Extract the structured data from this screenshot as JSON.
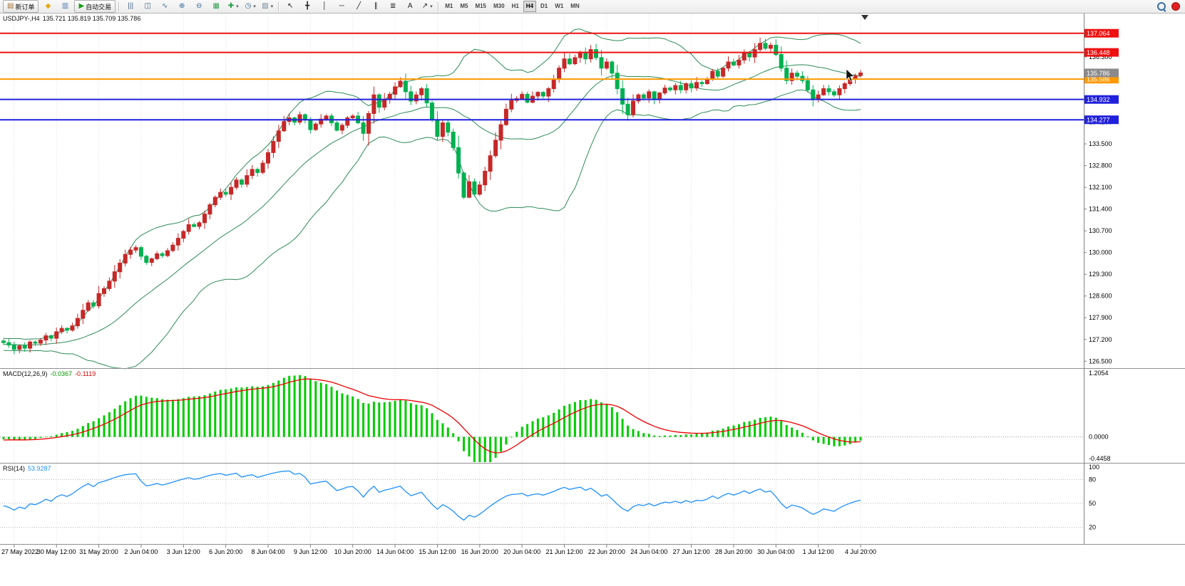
{
  "toolbar": {
    "groups": [
      {
        "items": [
          {
            "name": "new-order-button",
            "glyph": "▤",
            "color": "#a87030",
            "label": "新订单"
          },
          {
            "name": "metaeditor-button",
            "glyph": "◆",
            "color": "#e8a818"
          },
          {
            "name": "market-watch-button",
            "glyph": "▥",
            "color": "#5577aa"
          },
          {
            "name": "auto-trading-button",
            "glyph": "▶",
            "color": "#17a017",
            "label": "自动交易"
          }
        ]
      },
      {
        "items": [
          {
            "name": "bar-chart-button",
            "glyph": "|||",
            "color": "#446688"
          },
          {
            "name": "candlestick-chart-button",
            "glyph": "◫",
            "color": "#446688"
          },
          {
            "name": "line-chart-button",
            "glyph": "∿",
            "color": "#446688"
          },
          {
            "name": "zoom-in-button",
            "glyph": "⊕",
            "color": "#336699"
          },
          {
            "name": "zoom-out-button",
            "glyph": "⊖",
            "color": "#336699"
          },
          {
            "name": "tile-windows-button",
            "glyph": "▦",
            "color": "#33a055"
          },
          {
            "name": "indicators-button",
            "glyph": "✚",
            "color": "#22a044",
            "dropdown": true
          },
          {
            "name": "periods-button",
            "glyph": "◷",
            "color": "#336699",
            "dropdown": true
          },
          {
            "name": "templates-button",
            "glyph": "▨",
            "color": "#778899",
            "dropdown": true
          }
        ]
      },
      {
        "items": [
          {
            "name": "cursor-button",
            "glyph": "↖",
            "color": "#222222"
          },
          {
            "name": "crosshair-button",
            "glyph": "╋",
            "color": "#222222"
          },
          {
            "name": "vertical-line-button",
            "glyph": "│",
            "color": "#222222"
          },
          {
            "name": "horizontal-line-button",
            "glyph": "─",
            "color": "#222222"
          },
          {
            "name": "trendline-button",
            "glyph": "╱",
            "color": "#222222"
          },
          {
            "name": "channel-button",
            "glyph": "∥",
            "color": "#222222"
          },
          {
            "name": "fibonacci-button",
            "glyph": "≣",
            "color": "#222222"
          },
          {
            "name": "text-button",
            "glyph": "A",
            "color": "#222222"
          },
          {
            "name": "arrows-button",
            "glyph": "↗",
            "color": "#222222",
            "dropdown": true
          }
        ]
      }
    ],
    "timeframes": [
      "M1",
      "M5",
      "M15",
      "M30",
      "H1",
      "H4",
      "D1",
      "W1",
      "MN"
    ],
    "active_timeframe": "H4",
    "right_items": [
      {
        "name": "search-icon",
        "type": "lens"
      },
      {
        "name": "notification-icon",
        "type": "dot",
        "color": "#e02020"
      }
    ]
  },
  "chart_header": {
    "symbol_period": "USDJPY-,H4",
    "ohlc_text": "135.721 135.819 135.709 135.786"
  },
  "indicators": {
    "macd": {
      "label": "MACD(12,26,9)",
      "main_value": "-0.0367",
      "signal_value": "-0.1119",
      "axis_max": "1.2054",
      "axis_zero": "0.0000",
      "axis_min": "-0.4458"
    },
    "rsi": {
      "label": "RSI(14)",
      "value": "53.9287",
      "axis_ticks": [
        "100",
        "80",
        "50",
        "20"
      ],
      "levels": [
        80,
        50,
        20
      ]
    }
  },
  "chart_data": {
    "type": "candlestick",
    "symbol": "USDJPY-",
    "period": "H4",
    "title": "USDJPY-,H4 135.721 135.819 135.709 135.786",
    "first_open": 127.15,
    "preroll": [
      127.3,
      127.1,
      126.9,
      127.0,
      127.2,
      127.05,
      126.95,
      127.15,
      127.0,
      126.9,
      127.1,
      127.2,
      127.0,
      126.85,
      127.05,
      127.15,
      126.95,
      127.0,
      127.1,
      127.05
    ],
    "closes": [
      127.1,
      127.02,
      126.88,
      127.0,
      126.92,
      127.12,
      127.08,
      127.18,
      127.32,
      127.24,
      127.45,
      127.56,
      127.5,
      127.64,
      127.88,
      128.14,
      128.38,
      128.28,
      128.68,
      128.84,
      129.08,
      129.38,
      129.66,
      129.94,
      130.08,
      130.16,
      129.88,
      129.68,
      129.8,
      129.96,
      129.9,
      130.06,
      130.24,
      130.46,
      130.68,
      130.9,
      130.84,
      130.96,
      131.24,
      131.54,
      131.78,
      131.94,
      131.88,
      132.1,
      132.34,
      132.2,
      132.48,
      132.68,
      132.58,
      132.88,
      133.22,
      133.58,
      133.92,
      134.22,
      134.34,
      134.2,
      134.44,
      134.28,
      133.96,
      134.14,
      134.3,
      134.4,
      134.18,
      133.94,
      134.1,
      134.34,
      134.4,
      134.18,
      133.84,
      134.48,
      135.08,
      134.68,
      134.94,
      135.1,
      135.34,
      135.52,
      135.18,
      134.88,
      135.08,
      135.28,
      134.82,
      134.28,
      133.74,
      134.18,
      133.88,
      133.38,
      132.56,
      131.78,
      132.28,
      131.88,
      132.18,
      132.62,
      133.12,
      133.62,
      134.12,
      134.62,
      134.9,
      134.96,
      135.1,
      134.84,
      135.04,
      135.16,
      135.04,
      135.28,
      135.58,
      135.94,
      136.24,
      136.08,
      136.28,
      136.46,
      136.24,
      136.54,
      136.28,
      135.94,
      136.14,
      135.78,
      135.28,
      134.78,
      134.44,
      134.88,
      135.08,
      134.98,
      135.18,
      134.94,
      135.14,
      135.3,
      135.24,
      135.38,
      135.24,
      135.44,
      135.3,
      135.48,
      135.44,
      135.58,
      135.84,
      135.68,
      135.94,
      136.14,
      136.04,
      136.2,
      136.44,
      136.3,
      136.54,
      136.74,
      136.58,
      136.68,
      136.38,
      135.94,
      135.54,
      135.78,
      135.68,
      135.54,
      135.24,
      134.94,
      135.08,
      135.28,
      135.18,
      135.08,
      135.28,
      135.44,
      135.58,
      135.7,
      135.786
    ],
    "price_axis": {
      "min": 126.3,
      "max": 137.7,
      "ticks": [
        "137.000",
        "136.300",
        "135.600",
        "134.900",
        "134.200",
        "133.500",
        "132.800",
        "132.100",
        "131.400",
        "130.700",
        "130.000",
        "129.300",
        "128.600",
        "127.900",
        "127.200",
        "126.500"
      ]
    },
    "hlines": [
      {
        "price": 137.064,
        "label": "137.064",
        "color": "#ee1111"
      },
      {
        "price": 136.448,
        "label": "136.448",
        "color": "#ee1111"
      },
      {
        "price": 135.586,
        "label": "135.586",
        "color": "#ff9900"
      },
      {
        "price": 134.932,
        "label": "134.932",
        "color": "#2020dd"
      },
      {
        "price": 134.277,
        "label": "134.277",
        "color": "#2020dd"
      }
    ],
    "bid": {
      "price": 135.786,
      "label": "135.786",
      "color": "#8a8a8a"
    },
    "time_labels": [
      "27 May 2022",
      "30 May 12:00",
      "31 May 20:00",
      "2 Jun 04:00",
      "3 Jun 12:00",
      "6 Jun 20:00",
      "8 Jun 04:00",
      "9 Jun 12:00",
      "10 Jun 20:00",
      "14 Jun 04:00",
      "15 Jun 12:00",
      "16 Jun 20:00",
      "20 Jun 04:00",
      "21 Jun 12:00",
      "22 Jun 20:00",
      "24 Jun 04:00",
      "27 Jun 12:00",
      "28 Jun 20:00",
      "30 Jun 04:00",
      "1 Jul 12:00",
      "4 Jul 20:00"
    ],
    "first_label_index": 2,
    "label_step": 8,
    "bollinger": {
      "period": 20,
      "deviation": 2,
      "color": "#2e8b57"
    },
    "macd": {
      "fast": 12,
      "slow": 26,
      "signal_period": 9,
      "range": [
        -0.4458,
        1.2054
      ],
      "hist_color": "#00cc00",
      "signal_color": "#ee0000"
    },
    "rsi": {
      "period": 14,
      "range": [
        0,
        100
      ],
      "color": "#1e90ff"
    },
    "colors": {
      "bull": "#c62828",
      "bear": "#00b050",
      "grid": "#dedede",
      "axis": "#808080",
      "background": "#ffffff"
    }
  }
}
